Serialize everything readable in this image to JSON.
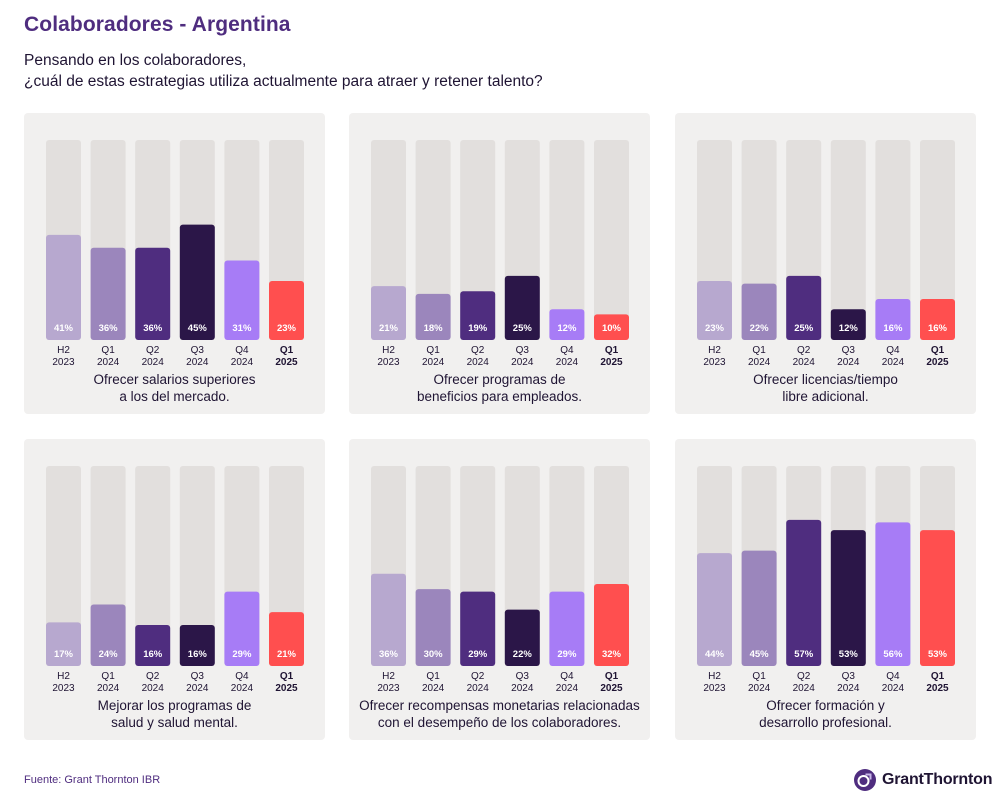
{
  "header": {
    "title": "Colaboradores - Argentina",
    "subtitle_lines": [
      "Pensando en los colaboradores,",
      "¿cuál de estas estrategias utiliza actualmente para atraer y retener talento?"
    ]
  },
  "footer": {
    "source": "Fuente: Grant Thornton IBR",
    "logo_text": "GrantThornton",
    "logo_icon": "grant-thornton-logo-icon"
  },
  "colors": {
    "H2 2023": "#b7a8cf",
    "Q1 2024": "#9b86bc",
    "Q2 2024": "#4f2d7f",
    "Q3 2024": "#2b1648",
    "Q4 2024": "#a77cf6",
    "Q1 2025": "#ff4f4f",
    "track": "#e2dfdd",
    "panel_bg": "#f1f0ef",
    "title": "#4f2d7f"
  },
  "chart_data": [
    {
      "type": "bar",
      "caption_lines": [
        "Ofrecer salarios superiores",
        "a los del mercado."
      ],
      "categories": [
        [
          "H2",
          "2023"
        ],
        [
          "Q1",
          "2024"
        ],
        [
          "Q2",
          "2024"
        ],
        [
          "Q3",
          "2024"
        ],
        [
          "Q4",
          "2024"
        ],
        [
          "Q1",
          "2025"
        ]
      ],
      "highlight_last": true,
      "values": [
        41,
        36,
        36,
        45,
        31,
        23
      ],
      "value_labels": [
        "41%",
        "36%",
        "36%",
        "45%",
        "31%",
        "23%"
      ],
      "ylim": [
        0,
        100
      ]
    },
    {
      "type": "bar",
      "caption_lines": [
        "Ofrecer programas de",
        "beneficios para empleados."
      ],
      "categories": [
        [
          "H2",
          "2023"
        ],
        [
          "Q1",
          "2024"
        ],
        [
          "Q2",
          "2024"
        ],
        [
          "Q3",
          "2024"
        ],
        [
          "Q4",
          "2024"
        ],
        [
          "Q1",
          "2025"
        ]
      ],
      "highlight_last": true,
      "values": [
        21,
        18,
        19,
        25,
        12,
        10
      ],
      "value_labels": [
        "21%",
        "18%",
        "19%",
        "25%",
        "12%",
        "10%"
      ],
      "ylim": [
        0,
        100
      ]
    },
    {
      "type": "bar",
      "caption_lines": [
        "Ofrecer licencias/tiempo",
        "libre adicional."
      ],
      "categories": [
        [
          "H2",
          "2023"
        ],
        [
          "Q1",
          "2024"
        ],
        [
          "Q2",
          "2024"
        ],
        [
          "Q3",
          "2024"
        ],
        [
          "Q4",
          "2024"
        ],
        [
          "Q1",
          "2025"
        ]
      ],
      "highlight_last": true,
      "values": [
        23,
        22,
        25,
        12,
        16,
        16
      ],
      "value_labels": [
        "23%",
        "22%",
        "25%",
        "12%",
        "16%",
        "16%"
      ],
      "ylim": [
        0,
        100
      ]
    },
    {
      "type": "bar",
      "caption_lines": [
        "Mejorar los programas de",
        "salud y salud mental."
      ],
      "categories": [
        [
          "H2",
          "2023"
        ],
        [
          "Q1",
          "2024"
        ],
        [
          "Q2",
          "2024"
        ],
        [
          "Q3",
          "2024"
        ],
        [
          "Q4",
          "2024"
        ],
        [
          "Q1",
          "2025"
        ]
      ],
      "highlight_last": true,
      "values": [
        17,
        24,
        16,
        16,
        29,
        21
      ],
      "value_labels": [
        "17%",
        "24%",
        "16%",
        "16%",
        "29%",
        "21%"
      ],
      "ylim": [
        0,
        100
      ]
    },
    {
      "type": "bar",
      "caption_lines": [
        "Ofrecer recompensas monetarias relacionadas",
        "con el desempeño de los colaboradores."
      ],
      "categories": [
        [
          "H2",
          "2023"
        ],
        [
          "Q1",
          "2024"
        ],
        [
          "Q2",
          "2024"
        ],
        [
          "Q3",
          "2024"
        ],
        [
          "Q4",
          "2024"
        ],
        [
          "Q1",
          "2025"
        ]
      ],
      "highlight_last": true,
      "values": [
        36,
        30,
        29,
        22,
        29,
        32
      ],
      "value_labels": [
        "36%",
        "30%",
        "29%",
        "22%",
        "29%",
        "32%"
      ],
      "ylim": [
        0,
        100
      ]
    },
    {
      "type": "bar",
      "caption_lines": [
        "Ofrecer formación y",
        "desarrollo profesional."
      ],
      "categories": [
        [
          "H2",
          "2023"
        ],
        [
          "Q1",
          "2024"
        ],
        [
          "Q2",
          "2024"
        ],
        [
          "Q3",
          "2024"
        ],
        [
          "Q4",
          "2024"
        ],
        [
          "Q1",
          "2025"
        ]
      ],
      "highlight_last": true,
      "values": [
        44,
        45,
        57,
        53,
        56,
        53
      ],
      "value_labels": [
        "44%",
        "45%",
        "57%",
        "53%",
        "56%",
        "53%"
      ],
      "ylim": [
        0,
        100
      ]
    }
  ]
}
